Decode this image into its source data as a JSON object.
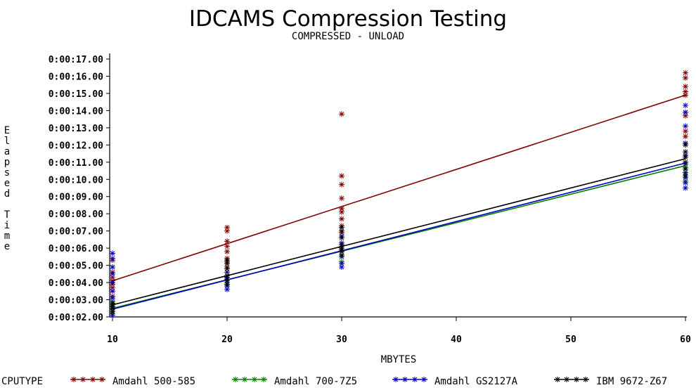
{
  "chart_data": {
    "type": "scatter",
    "title": "IDCAMS Compression Testing",
    "subtitle": "COMPRESSED - UNLOAD",
    "xlabel": "MBYTES",
    "ylabel": "Elapsed Time",
    "legend_title": "CPUTYPE",
    "legend_position": "bottom",
    "grid": false,
    "xlim": [
      10,
      60
    ],
    "x_ticks": [
      "10",
      "20",
      "30",
      "40",
      "50",
      "60"
    ],
    "ylim": [
      2,
      17
    ],
    "y_ticks": [
      "0:00:02.00",
      "0:00:03.00",
      "0:00:04.00",
      "0:00:05.00",
      "0:00:06.00",
      "0:00:07.00",
      "0:00:08.00",
      "0:00:09.00",
      "0:00:10.00",
      "0:00:11.00",
      "0:00:12.00",
      "0:00:13.00",
      "0:00:14.00",
      "0:00:15.00",
      "0:00:16.00",
      "0:00:17.00"
    ],
    "y_unit": "seconds",
    "series": [
      {
        "name": "Amdahl 500-585",
        "color": "#800000",
        "marker": "asterisk",
        "fit_line": {
          "x": [
            10,
            60
          ],
          "y": [
            4.1,
            14.9
          ]
        },
        "points": [
          [
            10,
            3.2
          ],
          [
            10,
            3.5
          ],
          [
            10,
            3.7
          ],
          [
            10,
            3.9
          ],
          [
            10,
            4.1
          ],
          [
            10,
            4.3
          ],
          [
            10,
            4.6
          ],
          [
            10,
            4.9
          ],
          [
            10,
            5.3
          ],
          [
            20,
            4.9
          ],
          [
            20,
            5.2
          ],
          [
            20,
            5.4
          ],
          [
            20,
            5.8
          ],
          [
            20,
            6.1
          ],
          [
            20,
            6.4
          ],
          [
            20,
            7.0
          ],
          [
            20,
            7.2
          ],
          [
            30,
            6.9
          ],
          [
            30,
            7.3
          ],
          [
            30,
            7.7
          ],
          [
            30,
            8.1
          ],
          [
            30,
            8.3
          ],
          [
            30,
            8.9
          ],
          [
            30,
            9.7
          ],
          [
            30,
            10.2
          ],
          [
            30,
            13.8
          ],
          [
            60,
            12.1
          ],
          [
            60,
            12.5
          ],
          [
            60,
            12.8
          ],
          [
            60,
            13.7
          ],
          [
            60,
            13.9
          ],
          [
            60,
            14.9
          ],
          [
            60,
            15.1
          ],
          [
            60,
            15.4
          ],
          [
            60,
            15.9
          ],
          [
            60,
            16.2
          ]
        ]
      },
      {
        "name": "Amdahl 700-7Z5",
        "color": "#008000",
        "marker": "asterisk",
        "fit_line": {
          "x": [
            10,
            60
          ],
          "y": [
            2.5,
            10.8
          ]
        },
        "points": [
          [
            10,
            2.2
          ],
          [
            10,
            2.4
          ],
          [
            10,
            2.6
          ],
          [
            10,
            2.9
          ],
          [
            20,
            3.8
          ],
          [
            20,
            4.0
          ],
          [
            20,
            4.3
          ],
          [
            30,
            5.2
          ],
          [
            30,
            5.6
          ],
          [
            30,
            6.0
          ],
          [
            60,
            9.9
          ],
          [
            60,
            10.3
          ],
          [
            60,
            10.7
          ]
        ]
      },
      {
        "name": "Amdahl GS2127A",
        "color": "#0000c0",
        "marker": "asterisk",
        "fit_line": {
          "x": [
            10,
            60
          ],
          "y": [
            2.45,
            10.95
          ]
        },
        "points": [
          [
            10,
            2.1
          ],
          [
            10,
            2.3
          ],
          [
            10,
            2.5
          ],
          [
            10,
            2.8
          ],
          [
            10,
            3.1
          ],
          [
            10,
            3.5
          ],
          [
            10,
            4.0
          ],
          [
            10,
            4.5
          ],
          [
            10,
            4.9
          ],
          [
            10,
            5.4
          ],
          [
            10,
            5.7
          ],
          [
            20,
            3.6
          ],
          [
            20,
            3.8
          ],
          [
            20,
            4.1
          ],
          [
            20,
            4.3
          ],
          [
            20,
            4.6
          ],
          [
            30,
            4.9
          ],
          [
            30,
            5.1
          ],
          [
            30,
            5.5
          ],
          [
            30,
            5.9
          ],
          [
            30,
            6.3
          ],
          [
            30,
            6.7
          ],
          [
            60,
            9.5
          ],
          [
            60,
            9.8
          ],
          [
            60,
            10.1
          ],
          [
            60,
            10.4
          ],
          [
            60,
            10.9
          ],
          [
            60,
            11.4
          ],
          [
            60,
            12.1
          ],
          [
            60,
            13.1
          ],
          [
            60,
            13.9
          ],
          [
            60,
            14.3
          ]
        ]
      },
      {
        "name": "IBM 9672-Z67",
        "color": "#000000",
        "marker": "asterisk",
        "fit_line": {
          "x": [
            10,
            60
          ],
          "y": [
            2.7,
            11.2
          ]
        },
        "points": [
          [
            10,
            2.3
          ],
          [
            10,
            2.5
          ],
          [
            10,
            2.6
          ],
          [
            10,
            2.7
          ],
          [
            10,
            2.8
          ],
          [
            20,
            3.9
          ],
          [
            20,
            4.2
          ],
          [
            20,
            4.4
          ],
          [
            20,
            4.8
          ],
          [
            20,
            5.1
          ],
          [
            20,
            5.3
          ],
          [
            30,
            5.6
          ],
          [
            30,
            5.8
          ],
          [
            30,
            6.0
          ],
          [
            30,
            6.2
          ],
          [
            30,
            6.6
          ],
          [
            30,
            7.0
          ],
          [
            30,
            7.2
          ],
          [
            60,
            10.2
          ],
          [
            60,
            10.6
          ],
          [
            60,
            11.0
          ],
          [
            60,
            11.3
          ],
          [
            60,
            11.6
          ],
          [
            60,
            12.0
          ]
        ]
      }
    ]
  }
}
